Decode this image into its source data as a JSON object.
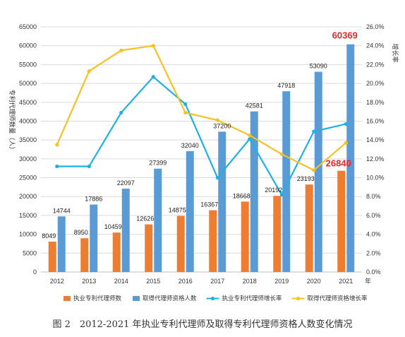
{
  "caption": "图 2　2012-2021 年执业专利代理师及取得专利代理师资格人数变化情况",
  "chart_data": {
    "type": "bar",
    "categories": [
      "2012",
      "2013",
      "2014",
      "2015",
      "2016",
      "2017",
      "2018",
      "2019",
      "2020",
      "2021"
    ],
    "x_unit_label": "年",
    "series": [
      {
        "name": "执业专利代理师数",
        "kind": "bar",
        "axis": "left",
        "color": "#ED7D31",
        "values": [
          8049,
          8950,
          10459,
          12626,
          14875,
          16367,
          18668,
          20192,
          23193,
          26840
        ]
      },
      {
        "name": "取得代理师资格人数",
        "kind": "bar",
        "axis": "left",
        "color": "#5B9BD5",
        "values": [
          14744,
          17886,
          22097,
          27399,
          32040,
          37200,
          42581,
          47918,
          53090,
          60369
        ]
      },
      {
        "name": "执业专利代理师增长率",
        "kind": "line",
        "axis": "right",
        "color": "#1FB0E6",
        "values": [
          11.2,
          11.2,
          16.9,
          20.7,
          17.8,
          10.0,
          14.1,
          8.2,
          14.9,
          15.7
        ]
      },
      {
        "name": "取得代理师资格增长率",
        "kind": "line",
        "axis": "right",
        "color": "#F6C126",
        "values": [
          13.5,
          21.3,
          23.5,
          24.0,
          16.9,
          16.1,
          14.5,
          12.5,
          10.8,
          13.7
        ]
      }
    ],
    "ylabel_left": "专利代理师数量（人）",
    "ylabel_right": "增长率",
    "ylim_left": [
      0,
      65000
    ],
    "yticks_left": [
      0,
      5000,
      10000,
      15000,
      20000,
      25000,
      30000,
      35000,
      40000,
      45000,
      50000,
      55000,
      60000,
      65000
    ],
    "ylim_right": [
      0,
      26
    ],
    "yticks_right": [
      "0.0%",
      "2.0%",
      "4.0%",
      "6.0%",
      "8.0%",
      "10.0%",
      "12.0%",
      "14.0%",
      "16.0%",
      "18.0%",
      "20.0%",
      "22.0%",
      "24.0%",
      "26.0%"
    ],
    "highlight_labels": {
      "2021": {
        "color": "#E8262C"
      }
    },
    "legend_position": "bottom",
    "grid": true
  }
}
